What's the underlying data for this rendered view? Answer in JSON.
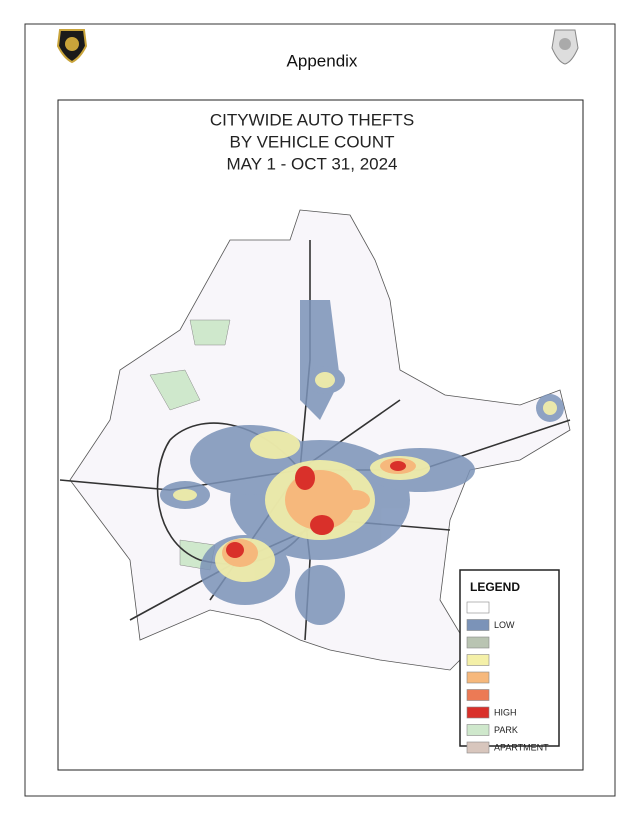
{
  "header": {
    "title": "Appendix"
  },
  "map": {
    "title_lines": [
      "CITYWIDE AUTO THEFTS",
      "BY VEHICLE COUNT",
      "MAY 1 - OCT 31, 2024"
    ],
    "legend": {
      "title": "LEGEND",
      "items": [
        {
          "color": "#ffffff"
        },
        {
          "color": "#7b93b8",
          "label": "LOW"
        },
        {
          "color": "#b9c4b2"
        },
        {
          "color": "#f4f0a8"
        },
        {
          "color": "#f6b87c"
        },
        {
          "color": "#ec7a55"
        },
        {
          "color": "#d9302a",
          "label": "HIGH"
        },
        {
          "color": "#cfe8cc",
          "label": "PARK"
        },
        {
          "color": "#d8c6bd",
          "label": "APARTMENT"
        }
      ]
    }
  }
}
